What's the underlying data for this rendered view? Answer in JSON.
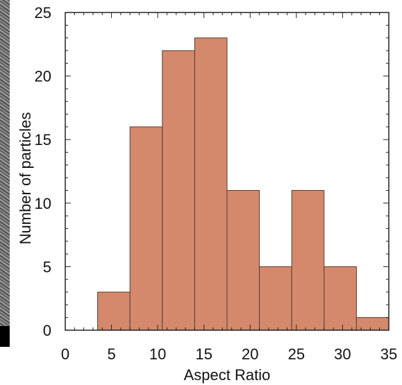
{
  "chart_data": {
    "type": "bar",
    "title": "",
    "xlabel": "Aspect Ratio",
    "ylabel": "Number of particles",
    "xlim": [
      0,
      35
    ],
    "ylim": [
      0,
      25
    ],
    "xticks": [
      0,
      5,
      10,
      15,
      20,
      25,
      30,
      35
    ],
    "yticks": [
      0,
      5,
      10,
      15,
      20,
      25
    ],
    "bin_width": 3.5,
    "bins": [
      {
        "x_start": 3.5,
        "x_end": 7.0,
        "value": 3
      },
      {
        "x_start": 7.0,
        "x_end": 10.5,
        "value": 16
      },
      {
        "x_start": 10.5,
        "x_end": 14.0,
        "value": 22
      },
      {
        "x_start": 14.0,
        "x_end": 17.5,
        "value": 23
      },
      {
        "x_start": 17.5,
        "x_end": 21.0,
        "value": 11
      },
      {
        "x_start": 21.0,
        "x_end": 24.5,
        "value": 5
      },
      {
        "x_start": 24.5,
        "x_end": 28.0,
        "value": 11
      },
      {
        "x_start": 28.0,
        "x_end": 31.5,
        "value": 5
      },
      {
        "x_start": 31.5,
        "x_end": 35.0,
        "value": 1
      }
    ],
    "bar_color": "#d4896c",
    "bar_edge_color": "#5a3a30",
    "grid": false
  }
}
